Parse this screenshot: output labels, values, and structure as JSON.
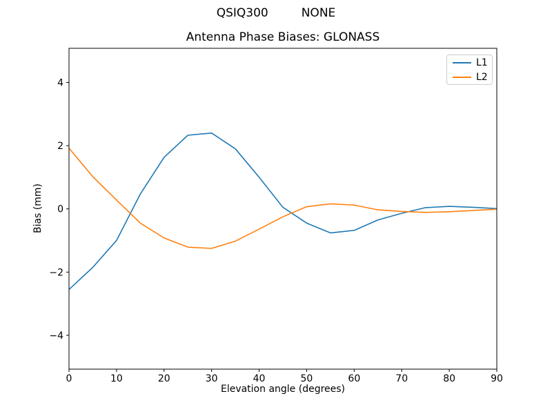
{
  "header": {
    "title_left": "QSIQ300",
    "title_right": "NONE"
  },
  "chart_data": {
    "type": "line",
    "title": "Antenna Phase Biases: GLONASS",
    "xlabel": "Elevation angle (degrees)",
    "ylabel": "Bias (mm)",
    "xlim": [
      0,
      90
    ],
    "ylim": [
      -5.07,
      5.08
    ],
    "xticks": [
      0,
      10,
      20,
      30,
      40,
      50,
      60,
      70,
      80,
      90
    ],
    "yticks": [
      -4,
      -2,
      0,
      2,
      4
    ],
    "grid": false,
    "legend_position": "upper right",
    "x": [
      0,
      5,
      10,
      15,
      20,
      25,
      30,
      35,
      40,
      45,
      50,
      55,
      60,
      65,
      70,
      75,
      80,
      85,
      90
    ],
    "series": [
      {
        "name": "L1",
        "color": "#1f77b4",
        "values": [
          -2.55,
          -1.85,
          -1.0,
          0.47,
          1.63,
          2.33,
          2.4,
          1.9,
          1.0,
          0.05,
          -0.45,
          -0.76,
          -0.68,
          -0.35,
          -0.14,
          0.04,
          0.08,
          0.05,
          0.01
        ]
      },
      {
        "name": "L2",
        "color": "#ff7f0e",
        "values": [
          1.92,
          1.02,
          0.28,
          -0.45,
          -0.92,
          -1.21,
          -1.25,
          -1.02,
          -0.64,
          -0.25,
          0.07,
          0.16,
          0.12,
          -0.03,
          -0.08,
          -0.11,
          -0.09,
          -0.05,
          -0.01
        ]
      }
    ]
  }
}
